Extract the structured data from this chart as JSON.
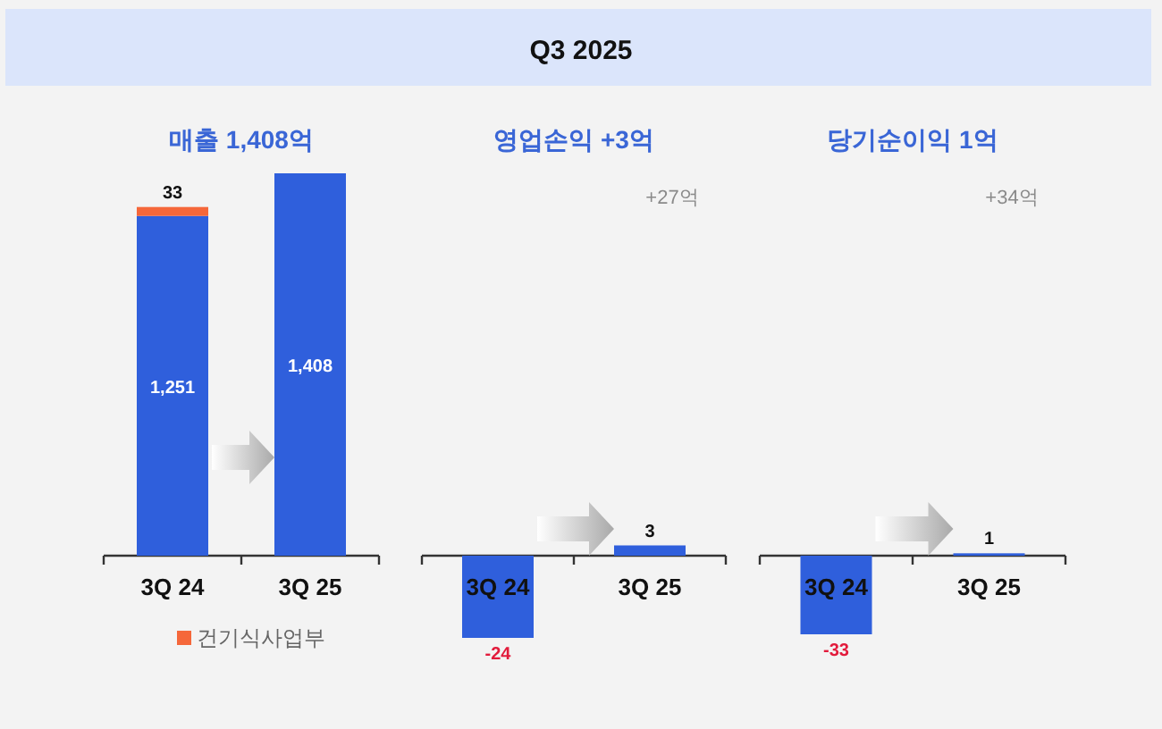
{
  "chart_data": [
    {
      "type": "bar",
      "title": "매출 1,408억",
      "annotations": [
        "Q3 2025"
      ],
      "categories": [
        "3Q 24",
        "3Q 25"
      ],
      "stacked": true,
      "legend": "bottom",
      "series": [
        {
          "color": "#2f5fdc",
          "values": [
            1251,
            1408
          ],
          "value_labels": [
            "1,251",
            "1,408"
          ]
        },
        {
          "name": "건기식사업부",
          "color": "#f5673a",
          "values": [
            33,
            null
          ],
          "value_labels": [
            "33",
            null
          ]
        }
      ]
    },
    {
      "type": "bar",
      "title": "영업손익 +3억",
      "annotations": [
        "+27억"
      ],
      "categories": [
        "3Q 24",
        "3Q 25"
      ],
      "series": [
        {
          "color": "#2f5fdc",
          "values": [
            -24,
            3
          ],
          "value_labels": [
            "-24",
            "3"
          ]
        }
      ]
    },
    {
      "type": "bar",
      "title": "당기순이익 1억",
      "annotations": [
        "+34억"
      ],
      "categories": [
        "3Q 24",
        "3Q 25"
      ],
      "series": [
        {
          "color": "#2f5fdc",
          "values": [
            -33,
            1
          ],
          "value_labels": [
            "-33",
            "1"
          ]
        }
      ]
    }
  ]
}
